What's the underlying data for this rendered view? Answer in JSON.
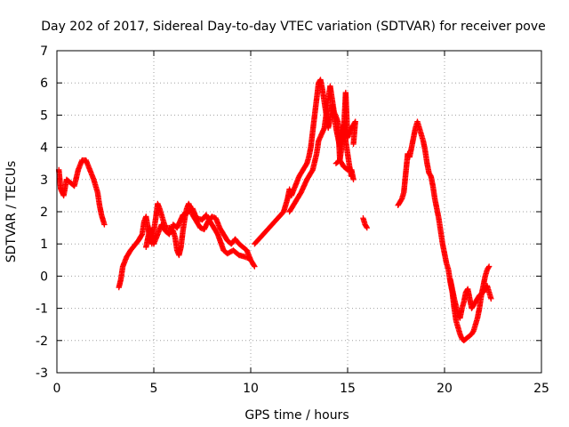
{
  "chart_data": {
    "type": "scatter",
    "title": "Day 202 of 2017, Sidereal Day-to-day VTEC variation (SDTVAR) for receiver pove",
    "xlabel": "GPS time / hours",
    "ylabel": "SDTVAR / TECUs",
    "xlim": [
      0,
      25
    ],
    "ylim": [
      -3,
      7
    ],
    "x_ticks": [
      "0",
      "5",
      "10",
      "15",
      "20",
      "25"
    ],
    "y_ticks": [
      "-3",
      "-2",
      "-1",
      "0",
      "1",
      "2",
      "3",
      "4",
      "5",
      "6",
      "7"
    ],
    "grid": true,
    "marker": "+",
    "color": "#ff0000",
    "series": [
      {
        "name": "SDTVAR",
        "segments": [
          [
            [
              0.1,
              3.3
            ],
            [
              0.2,
              2.7
            ],
            [
              0.35,
              2.5
            ],
            [
              0.5,
              3.0
            ],
            [
              0.7,
              2.9
            ],
            [
              0.9,
              2.8
            ],
            [
              1.1,
              3.3
            ],
            [
              1.3,
              3.6
            ],
            [
              1.5,
              3.6
            ],
            [
              1.7,
              3.3
            ],
            [
              1.9,
              3.0
            ],
            [
              2.0,
              2.8
            ],
            [
              2.1,
              2.6
            ],
            [
              2.2,
              2.2
            ],
            [
              2.3,
              1.9
            ],
            [
              2.45,
              1.6
            ]
          ],
          [
            [
              3.2,
              -0.35
            ],
            [
              3.3,
              -0.1
            ],
            [
              3.4,
              0.3
            ],
            [
              3.6,
              0.6
            ],
            [
              3.8,
              0.8
            ],
            [
              4.0,
              0.95
            ],
            [
              4.2,
              1.1
            ],
            [
              4.4,
              1.3
            ],
            [
              4.5,
              1.7
            ],
            [
              4.6,
              1.85
            ],
            [
              4.7,
              1.5
            ],
            [
              4.8,
              1.2
            ],
            [
              4.9,
              1.0
            ],
            [
              5.0,
              1.4
            ],
            [
              5.1,
              1.8
            ],
            [
              5.2,
              2.25
            ],
            [
              5.3,
              2.1
            ],
            [
              5.4,
              1.9
            ],
            [
              5.5,
              1.7
            ],
            [
              5.6,
              1.5
            ],
            [
              5.8,
              1.5
            ],
            [
              6.0,
              1.4
            ],
            [
              6.1,
              1.2
            ],
            [
              6.2,
              0.8
            ],
            [
              6.3,
              0.65
            ],
            [
              6.4,
              0.9
            ],
            [
              6.5,
              1.4
            ],
            [
              6.6,
              1.8
            ],
            [
              6.7,
              2.1
            ],
            [
              6.8,
              2.25
            ],
            [
              6.9,
              2.1
            ],
            [
              7.0,
              1.9
            ],
            [
              7.2,
              1.7
            ],
            [
              7.4,
              1.5
            ],
            [
              7.6,
              1.45
            ],
            [
              7.8,
              1.7
            ],
            [
              8.0,
              1.85
            ],
            [
              8.2,
              1.8
            ],
            [
              8.4,
              1.5
            ],
            [
              8.6,
              1.3
            ],
            [
              8.8,
              1.1
            ],
            [
              9.0,
              1.0
            ],
            [
              9.2,
              1.15
            ],
            [
              9.4,
              1.0
            ],
            [
              9.6,
              0.9
            ],
            [
              9.8,
              0.8
            ],
            [
              10.0,
              0.5
            ],
            [
              10.2,
              0.3
            ]
          ],
          [
            [
              4.6,
              0.9
            ],
            [
              4.8,
              1.5
            ],
            [
              5.0,
              1.0
            ],
            [
              5.2,
              1.3
            ],
            [
              5.4,
              1.6
            ],
            [
              5.6,
              1.4
            ],
            [
              5.8,
              1.3
            ],
            [
              6.0,
              1.6
            ],
            [
              6.2,
              1.5
            ],
            [
              6.5,
              1.9
            ],
            [
              6.8,
              2.0
            ],
            [
              7.0,
              2.1
            ],
            [
              7.2,
              1.8
            ],
            [
              7.5,
              1.75
            ],
            [
              7.7,
              1.9
            ],
            [
              8.0,
              1.6
            ],
            [
              8.3,
              1.3
            ],
            [
              8.6,
              0.8
            ],
            [
              8.8,
              0.7
            ],
            [
              9.1,
              0.8
            ],
            [
              9.4,
              0.65
            ],
            [
              9.7,
              0.6
            ],
            [
              9.9,
              0.55
            ]
          ],
          [
            [
              10.2,
              1.0
            ],
            [
              10.5,
              1.2
            ],
            [
              10.8,
              1.4
            ],
            [
              11.1,
              1.6
            ],
            [
              11.4,
              1.8
            ],
            [
              11.7,
              2.0
            ],
            [
              11.9,
              2.4
            ],
            [
              12.0,
              2.7
            ],
            [
              12.1,
              2.5
            ],
            [
              12.3,
              2.8
            ],
            [
              12.5,
              3.1
            ],
            [
              12.7,
              3.3
            ],
            [
              12.9,
              3.5
            ],
            [
              13.0,
              3.7
            ],
            [
              13.1,
              4.0
            ],
            [
              13.2,
              4.5
            ],
            [
              13.3,
              5.0
            ],
            [
              13.4,
              5.5
            ],
            [
              13.5,
              6.0
            ],
            [
              13.6,
              6.1
            ],
            [
              13.7,
              5.8
            ],
            [
              13.8,
              5.4
            ],
            [
              13.9,
              5.0
            ],
            [
              14.0,
              4.6
            ],
            [
              14.1,
              4.9
            ],
            [
              14.2,
              5.3
            ],
            [
              14.3,
              5.0
            ],
            [
              14.4,
              4.6
            ],
            [
              14.5,
              4.3
            ],
            [
              14.6,
              4.0
            ],
            [
              14.7,
              4.4
            ],
            [
              14.8,
              4.7
            ],
            [
              14.9,
              4.2
            ],
            [
              15.0,
              3.8
            ],
            [
              15.1,
              3.4
            ],
            [
              15.2,
              3.1
            ]
          ],
          [
            [
              12.0,
              2.0
            ],
            [
              12.3,
              2.3
            ],
            [
              12.6,
              2.6
            ],
            [
              12.9,
              3.0
            ],
            [
              13.2,
              3.3
            ],
            [
              13.4,
              3.8
            ],
            [
              13.5,
              4.2
            ],
            [
              13.8,
              4.6
            ],
            [
              14.0,
              5.5
            ],
            [
              14.1,
              5.9
            ],
            [
              14.3,
              5.1
            ],
            [
              14.5,
              4.8
            ],
            [
              14.6,
              3.6
            ],
            [
              14.8,
              4.5
            ],
            [
              14.9,
              5.7
            ],
            [
              15.0,
              4.3
            ],
            [
              15.2,
              4.6
            ],
            [
              15.4,
              4.8
            ],
            [
              15.3,
              4.1
            ]
          ],
          [
            [
              14.4,
              3.5
            ],
            [
              14.6,
              3.6
            ],
            [
              14.8,
              3.4
            ],
            [
              15.0,
              3.3
            ],
            [
              15.2,
              3.3
            ],
            [
              15.3,
              3.0
            ]
          ],
          [
            [
              15.8,
              1.8
            ],
            [
              15.9,
              1.6
            ],
            [
              16.0,
              1.5
            ]
          ],
          [
            [
              17.6,
              2.2
            ],
            [
              17.8,
              2.4
            ],
            [
              17.9,
              2.6
            ],
            [
              18.0,
              3.2
            ],
            [
              18.1,
              3.8
            ],
            [
              18.2,
              3.7
            ],
            [
              18.3,
              4.0
            ],
            [
              18.4,
              4.3
            ],
            [
              18.5,
              4.6
            ],
            [
              18.6,
              4.8
            ],
            [
              18.7,
              4.6
            ],
            [
              18.8,
              4.4
            ],
            [
              18.9,
              4.2
            ],
            [
              19.0,
              3.9
            ],
            [
              19.1,
              3.5
            ],
            [
              19.2,
              3.2
            ],
            [
              19.3,
              3.1
            ],
            [
              19.4,
              2.8
            ],
            [
              19.5,
              2.4
            ],
            [
              19.6,
              2.1
            ],
            [
              19.7,
              1.8
            ],
            [
              19.8,
              1.4
            ],
            [
              19.9,
              1.0
            ],
            [
              20.0,
              0.7
            ],
            [
              20.1,
              0.4
            ],
            [
              20.2,
              0.2
            ],
            [
              20.3,
              -0.2
            ],
            [
              20.4,
              -0.5
            ],
            [
              20.5,
              -1.0
            ],
            [
              20.6,
              -1.4
            ],
            [
              20.7,
              -1.6
            ],
            [
              20.8,
              -1.8
            ],
            [
              20.9,
              -1.95
            ],
            [
              21.0,
              -2.0
            ],
            [
              21.2,
              -1.9
            ],
            [
              21.4,
              -1.8
            ],
            [
              21.5,
              -1.7
            ],
            [
              21.6,
              -1.5
            ],
            [
              21.7,
              -1.3
            ],
            [
              21.8,
              -1.0
            ],
            [
              21.9,
              -0.6
            ],
            [
              22.0,
              -0.3
            ],
            [
              22.1,
              0.0
            ],
            [
              22.2,
              0.2
            ],
            [
              22.3,
              0.3
            ]
          ],
          [
            [
              20.3,
              -0.1
            ],
            [
              20.5,
              -0.7
            ],
            [
              20.7,
              -1.2
            ],
            [
              20.8,
              -1.3
            ],
            [
              20.9,
              -1.0
            ],
            [
              21.0,
              -0.8
            ],
            [
              21.1,
              -0.5
            ],
            [
              21.2,
              -0.4
            ],
            [
              21.3,
              -0.7
            ],
            [
              21.4,
              -1.0
            ],
            [
              21.5,
              -0.9
            ],
            [
              21.6,
              -0.8
            ],
            [
              21.8,
              -0.6
            ],
            [
              22.0,
              -0.5
            ],
            [
              22.2,
              -0.3
            ],
            [
              22.3,
              -0.5
            ],
            [
              22.4,
              -0.7
            ]
          ]
        ]
      }
    ]
  }
}
